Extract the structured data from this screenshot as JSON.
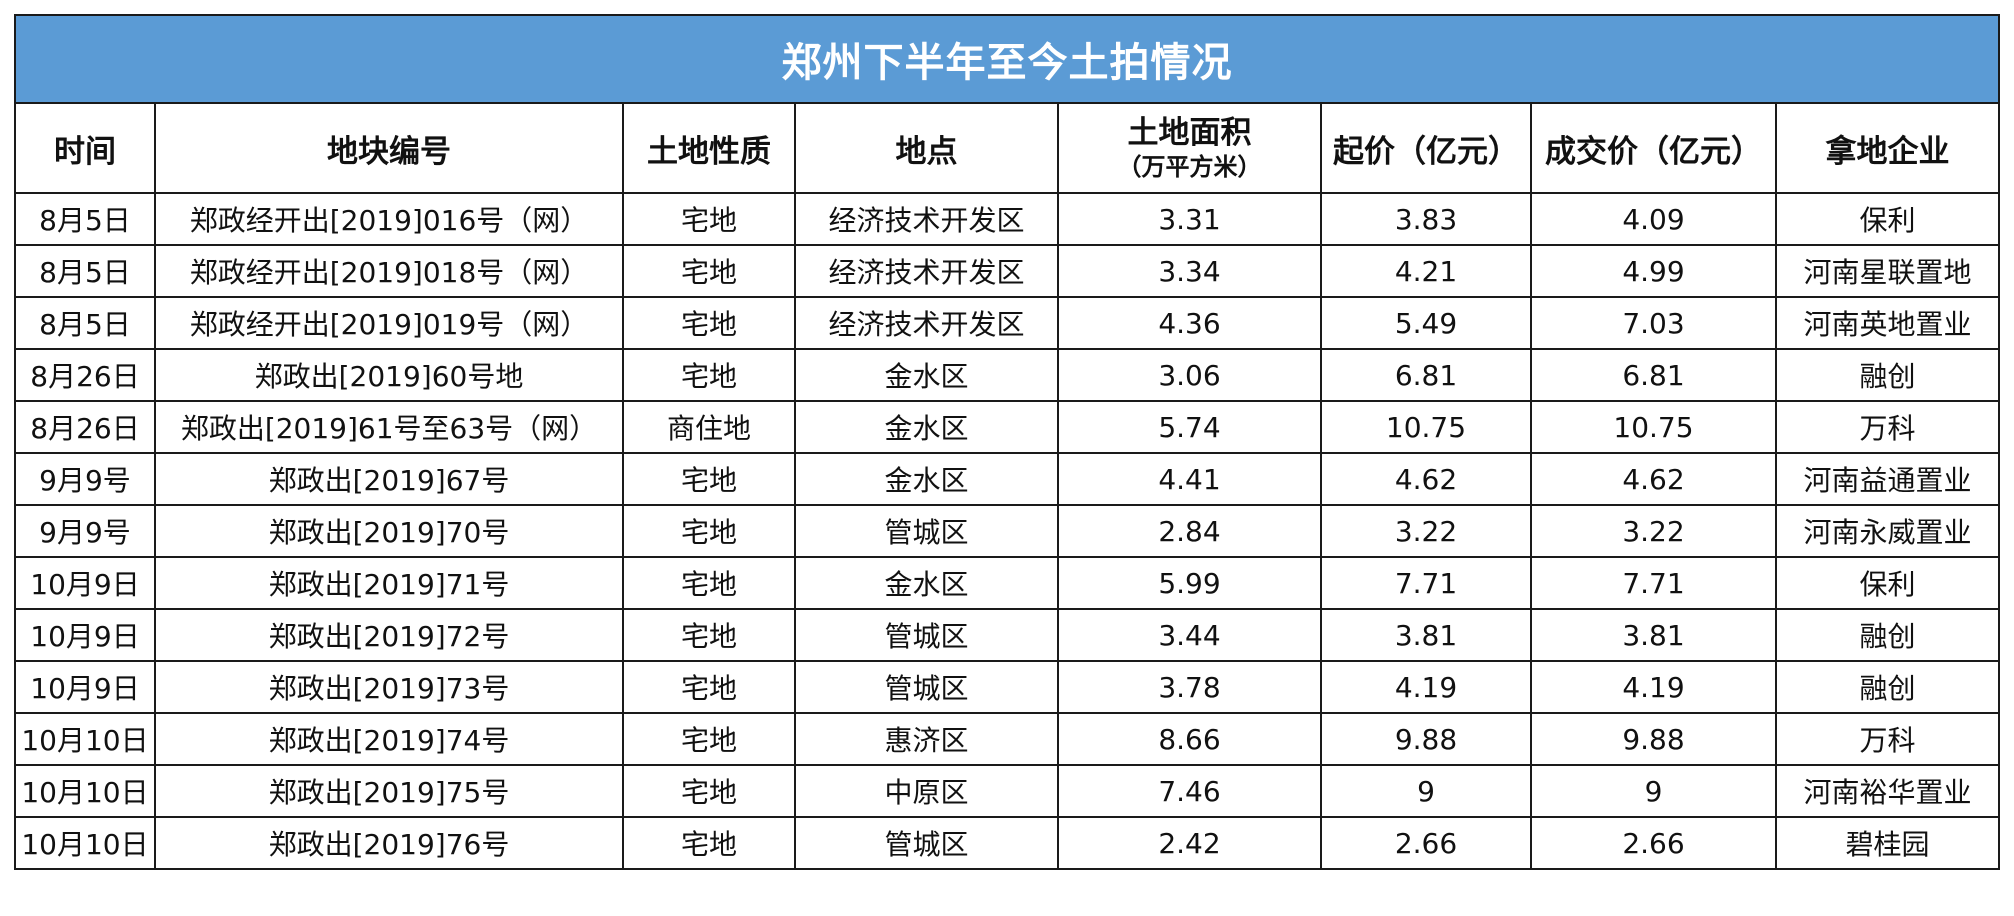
{
  "title": "郑州下半年至今土拍情况",
  "headers": {
    "time": "时间",
    "plot_no": "地块编号",
    "land_type": "土地性质",
    "location": "地点",
    "area": "土地面积",
    "area_unit": "（万平方米）",
    "start_price": "起价（亿元）",
    "deal_price": "成交价（亿元）",
    "winner": "拿地企业"
  },
  "rows": [
    {
      "time": "8月5日",
      "plot_no": "郑政经开出[2019]016号（网）",
      "land_type": "宅地",
      "location": "经济技术开发区",
      "area": "3.31",
      "start_price": "3.83",
      "deal_price": "4.09",
      "winner": "保利"
    },
    {
      "time": "8月5日",
      "plot_no": "郑政经开出[2019]018号（网）",
      "land_type": "宅地",
      "location": "经济技术开发区",
      "area": "3.34",
      "start_price": "4.21",
      "deal_price": "4.99",
      "winner": "河南星联置地"
    },
    {
      "time": "8月5日",
      "plot_no": "郑政经开出[2019]019号（网）",
      "land_type": "宅地",
      "location": "经济技术开发区",
      "area": "4.36",
      "start_price": "5.49",
      "deal_price": "7.03",
      "winner": "河南英地置业"
    },
    {
      "time": "8月26日",
      "plot_no": "郑政出[2019]60号地",
      "land_type": "宅地",
      "location": "金水区",
      "area": "3.06",
      "start_price": "6.81",
      "deal_price": "6.81",
      "winner": "融创"
    },
    {
      "time": "8月26日",
      "plot_no": "郑政出[2019]61号至63号（网）",
      "land_type": "商住地",
      "location": "金水区",
      "area": "5.74",
      "start_price": "10.75",
      "deal_price": "10.75",
      "winner": "万科"
    },
    {
      "time": "9月9号",
      "plot_no": "郑政出[2019]67号",
      "land_type": "宅地",
      "location": "金水区",
      "area": "4.41",
      "start_price": "4.62",
      "deal_price": "4.62",
      "winner": "河南益通置业"
    },
    {
      "time": "9月9号",
      "plot_no": "郑政出[2019]70号",
      "land_type": "宅地",
      "location": "管城区",
      "area": "2.84",
      "start_price": "3.22",
      "deal_price": "3.22",
      "winner": "河南永威置业"
    },
    {
      "time": "10月9日",
      "plot_no": "郑政出[2019]71号",
      "land_type": "宅地",
      "location": "金水区",
      "area": "5.99",
      "start_price": "7.71",
      "deal_price": "7.71",
      "winner": "保利"
    },
    {
      "time": "10月9日",
      "plot_no": "郑政出[2019]72号",
      "land_type": "宅地",
      "location": "管城区",
      "area": "3.44",
      "start_price": "3.81",
      "deal_price": "3.81",
      "winner": "融创"
    },
    {
      "time": "10月9日",
      "plot_no": "郑政出[2019]73号",
      "land_type": "宅地",
      "location": "管城区",
      "area": "3.78",
      "start_price": "4.19",
      "deal_price": "4.19",
      "winner": "融创"
    },
    {
      "time": "10月10日",
      "plot_no": "郑政出[2019]74号",
      "land_type": "宅地",
      "location": "惠济区",
      "area": "8.66",
      "start_price": "9.88",
      "deal_price": "9.88",
      "winner": "万科"
    },
    {
      "time": "10月10日",
      "plot_no": "郑政出[2019]75号",
      "land_type": "宅地",
      "location": "中原区",
      "area": "7.46",
      "start_price": "9",
      "deal_price": "9",
      "winner": "河南裕华置业"
    },
    {
      "time": "10月10日",
      "plot_no": "郑政出[2019]76号",
      "land_type": "宅地",
      "location": "管城区",
      "area": "2.42",
      "start_price": "2.66",
      "deal_price": "2.66",
      "winner": "碧桂园"
    }
  ]
}
